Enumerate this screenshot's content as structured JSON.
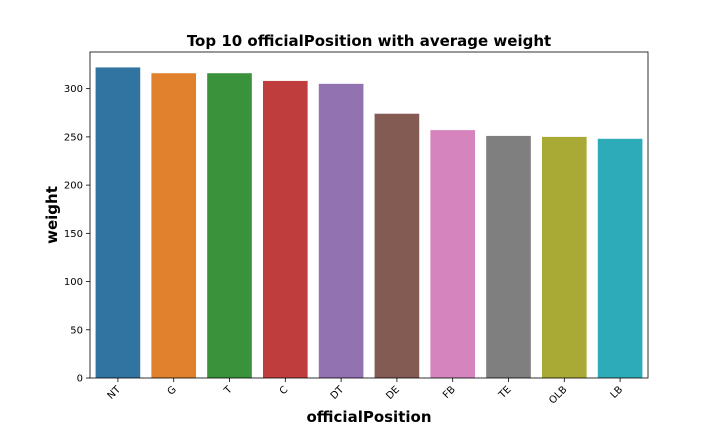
{
  "chart_data": {
    "type": "bar",
    "title": "Top 10 officialPosition with average weight",
    "xlabel": "officialPosition",
    "ylabel": "weight",
    "categories": [
      "NT",
      "G",
      "T",
      "C",
      "DT",
      "DE",
      "FB",
      "TE",
      "OLB",
      "LB"
    ],
    "values": [
      322,
      316,
      316,
      308,
      305,
      274,
      257,
      251,
      250,
      248
    ],
    "colors": [
      "#3274a1",
      "#e1812c",
      "#3a923a",
      "#c03d3e",
      "#9372b2",
      "#845b53",
      "#d684bd",
      "#7f7f7f",
      "#a9aa35",
      "#2eabb8"
    ],
    "ylim": [
      0,
      338
    ],
    "yticks": [
      "0",
      "50",
      "100",
      "150",
      "200",
      "250",
      "300"
    ],
    "grid": false,
    "legend": "none"
  }
}
